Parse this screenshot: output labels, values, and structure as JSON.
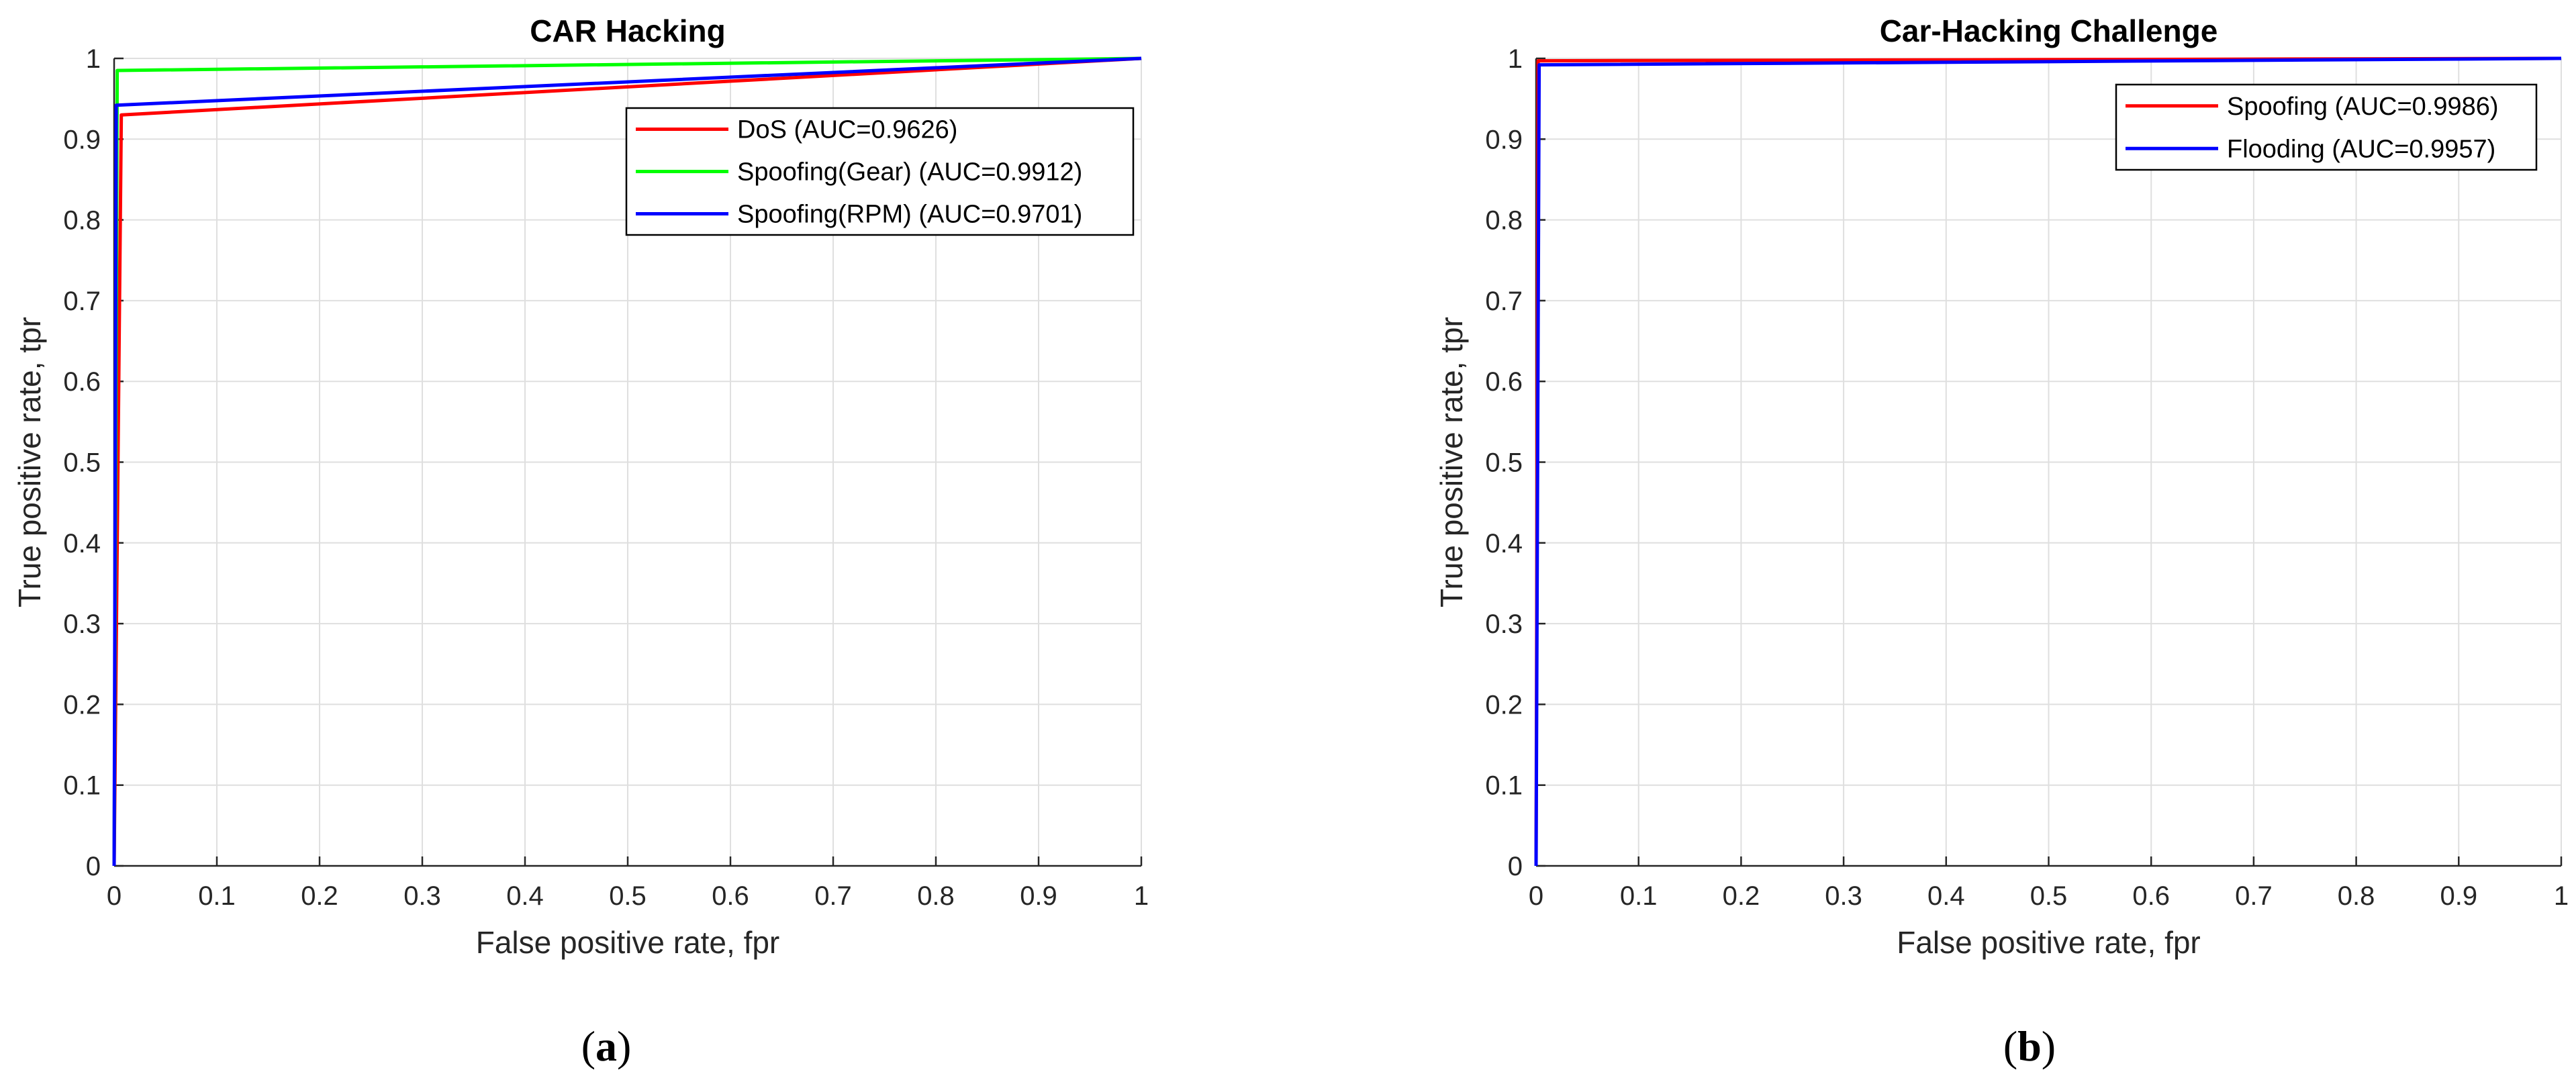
{
  "chart_data": [
    {
      "type": "line",
      "title": "CAR Hacking",
      "xlabel": "False positive rate, fpr",
      "ylabel": "True positive rate, tpr",
      "xlim": [
        0,
        1
      ],
      "ylim": [
        0,
        1
      ],
      "xticks": [
        "0",
        "0.1",
        "0.2",
        "0.3",
        "0.4",
        "0.5",
        "0.6",
        "0.7",
        "0.8",
        "0.9",
        "1"
      ],
      "yticks": [
        "0",
        "0.1",
        "0.2",
        "0.3",
        "0.4",
        "0.5",
        "0.6",
        "0.7",
        "0.8",
        "0.9",
        "1"
      ],
      "grid": true,
      "legend_position": "top-right",
      "caption": "a",
      "series": [
        {
          "name": "DoS (AUC=0.9626)",
          "color": "#ff0000",
          "x": [
            0,
            0.007,
            1
          ],
          "y": [
            0,
            0.93,
            1
          ]
        },
        {
          "name": "Spoofing(Gear) (AUC=0.9912)",
          "color": "#00ff00",
          "x": [
            0,
            0.003,
            1
          ],
          "y": [
            0,
            0.985,
            1
          ]
        },
        {
          "name": "Spoofing(RPM) (AUC=0.9701)",
          "color": "#0000ff",
          "x": [
            0,
            0.002,
            1
          ],
          "y": [
            0,
            0.942,
            1
          ]
        }
      ]
    },
    {
      "type": "line",
      "title": "Car-Hacking Challenge",
      "xlabel": "False positive rate, fpr",
      "ylabel": "True positive rate, tpr",
      "xlim": [
        0,
        1
      ],
      "ylim": [
        0,
        1
      ],
      "xticks": [
        "0",
        "0.1",
        "0.2",
        "0.3",
        "0.4",
        "0.5",
        "0.6",
        "0.7",
        "0.8",
        "0.9",
        "1"
      ],
      "yticks": [
        "0",
        "0.1",
        "0.2",
        "0.3",
        "0.4",
        "0.5",
        "0.6",
        "0.7",
        "0.8",
        "0.9",
        "1"
      ],
      "grid": true,
      "legend_position": "top-right",
      "caption": "b",
      "series": [
        {
          "name": "Spoofing (AUC=0.9986)",
          "color": "#ff0000",
          "x": [
            0,
            0.002,
            1
          ],
          "y": [
            0,
            0.997,
            1
          ]
        },
        {
          "name": "Flooding (AUC=0.9957)",
          "color": "#0000ff",
          "x": [
            0,
            0.003,
            1
          ],
          "y": [
            0,
            0.992,
            1
          ]
        }
      ]
    }
  ]
}
